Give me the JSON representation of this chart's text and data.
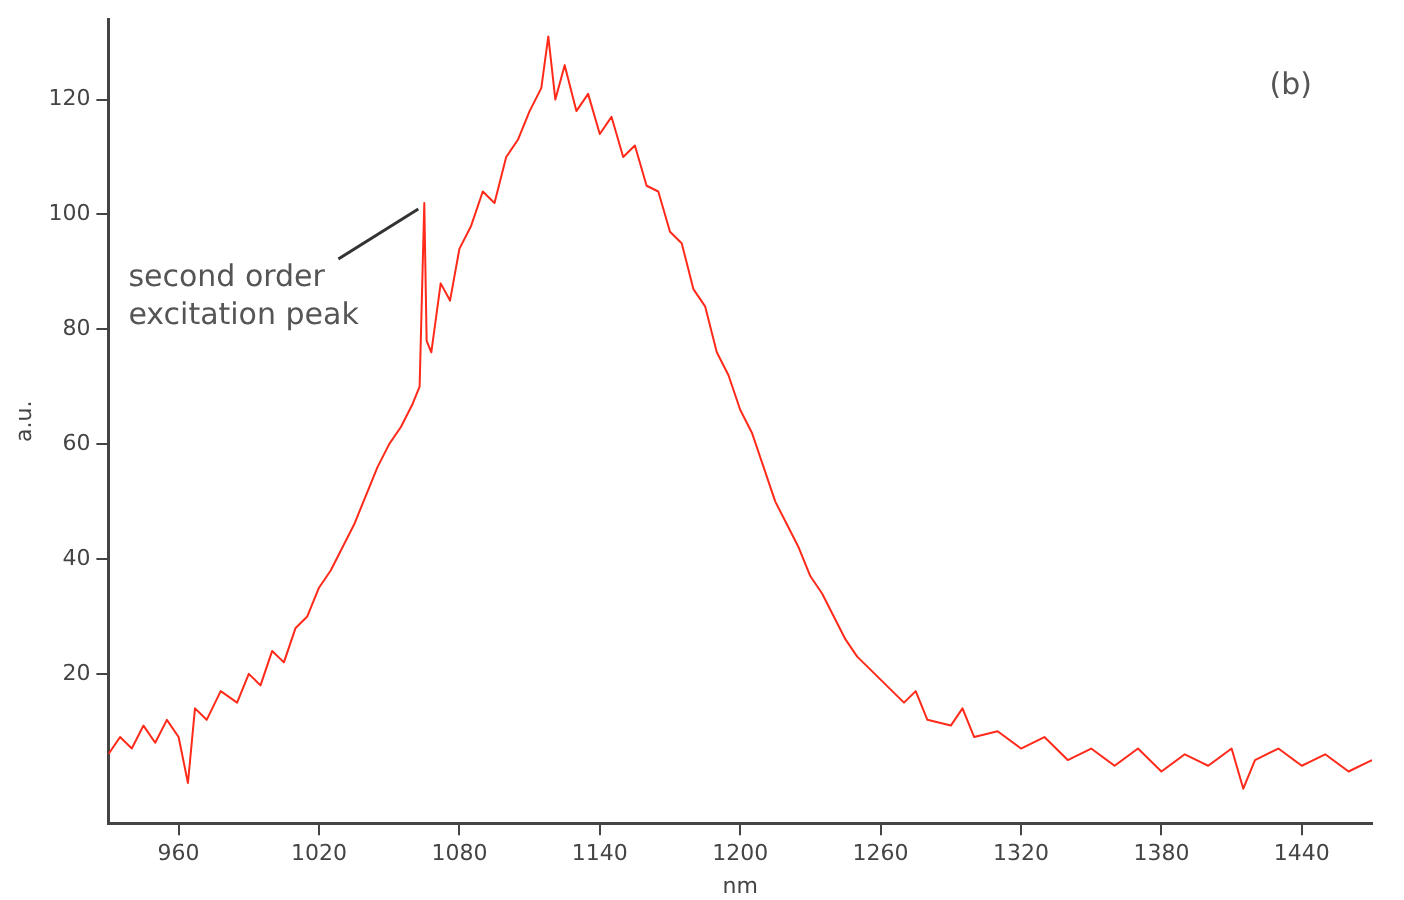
{
  "chart_data": {
    "type": "line",
    "xlabel": "nm",
    "ylabel": "a.u.",
    "legend": false,
    "grid": false,
    "marker": "none",
    "line_style": "solid",
    "xlim": [
      930,
      1470
    ],
    "xticks": [
      960,
      1020,
      1080,
      1140,
      1200,
      1260,
      1320,
      1380,
      1440
    ],
    "ylim": [
      -6,
      134
    ],
    "yticks": [
      20,
      40,
      60,
      80,
      100,
      120
    ],
    "series": [
      {
        "color": "#ff2a1a",
        "x": [
          930,
          935,
          940,
          945,
          950,
          955,
          960,
          964,
          967,
          972,
          978,
          985,
          990,
          995,
          1000,
          1005,
          1010,
          1015,
          1020,
          1025,
          1030,
          1035,
          1040,
          1045,
          1050,
          1055,
          1060,
          1063,
          1065,
          1066,
          1068,
          1072,
          1076,
          1080,
          1085,
          1090,
          1095,
          1100,
          1105,
          1110,
          1115,
          1118,
          1121,
          1125,
          1130,
          1135,
          1140,
          1145,
          1150,
          1155,
          1160,
          1165,
          1170,
          1175,
          1180,
          1185,
          1190,
          1195,
          1200,
          1205,
          1210,
          1215,
          1220,
          1225,
          1230,
          1235,
          1240,
          1245,
          1250,
          1255,
          1260,
          1265,
          1270,
          1275,
          1280,
          1290,
          1295,
          1300,
          1310,
          1320,
          1330,
          1340,
          1350,
          1360,
          1370,
          1380,
          1390,
          1400,
          1410,
          1415,
          1420,
          1430,
          1440,
          1450,
          1460,
          1470
        ],
        "values": [
          6,
          9,
          7,
          11,
          8,
          12,
          9,
          1,
          14,
          12,
          17,
          15,
          20,
          18,
          24,
          22,
          28,
          30,
          35,
          38,
          42,
          46,
          51,
          56,
          60,
          63,
          67,
          70,
          102,
          78,
          76,
          88,
          85,
          94,
          98,
          104,
          102,
          110,
          113,
          118,
          122,
          131,
          120,
          126,
          118,
          121,
          114,
          117,
          110,
          112,
          105,
          104,
          97,
          95,
          87,
          84,
          76,
          72,
          66,
          62,
          56,
          50,
          46,
          42,
          37,
          34,
          30,
          26,
          23,
          21,
          19,
          17,
          15,
          17,
          12,
          11,
          14,
          9,
          10,
          7,
          9,
          5,
          7,
          4,
          7,
          3,
          6,
          4,
          7,
          0,
          5,
          7,
          4,
          6,
          3,
          5
        ]
      }
    ],
    "annotations": [
      {
        "text": "second order excitation peak",
        "x": 1065,
        "y": 102
      },
      "(b)"
    ]
  }
}
